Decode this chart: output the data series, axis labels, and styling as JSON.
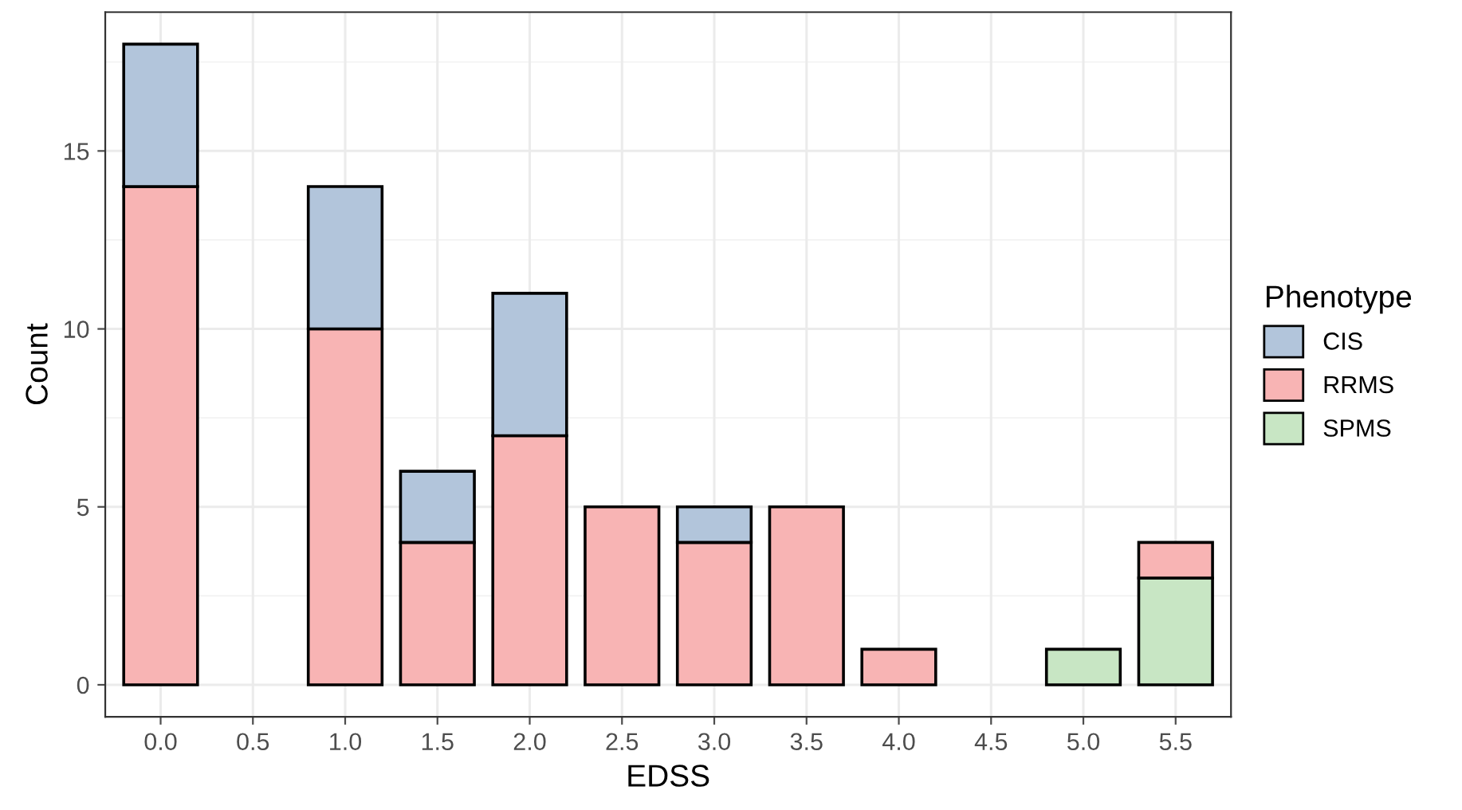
{
  "chart_data": {
    "type": "bar",
    "stacked": true,
    "xlabel": "EDSS",
    "ylabel": "Count",
    "legend_title": "Phenotype",
    "legend": "right",
    "grid": true,
    "categories": [
      "0.0",
      "0.5",
      "1.0",
      "1.5",
      "2.0",
      "2.5",
      "3.0",
      "3.5",
      "4.0",
      "4.5",
      "5.0",
      "5.5"
    ],
    "series": [
      {
        "name": "SPMS",
        "color": "#c8e6c4",
        "values": [
          null,
          null,
          null,
          null,
          null,
          null,
          null,
          null,
          null,
          null,
          1,
          3
        ]
      },
      {
        "name": "RRMS",
        "color": "#f8b4b4",
        "values": [
          14,
          null,
          10,
          4,
          7,
          5,
          4,
          5,
          1,
          null,
          null,
          1
        ]
      },
      {
        "name": "CIS",
        "color": "#b2c5db",
        "values": [
          4,
          null,
          4,
          2,
          4,
          null,
          1,
          null,
          null,
          null,
          null,
          null
        ]
      }
    ],
    "ylim": [
      -0.9,
      18.9
    ],
    "yticks": [
      0,
      5,
      10,
      15
    ]
  }
}
